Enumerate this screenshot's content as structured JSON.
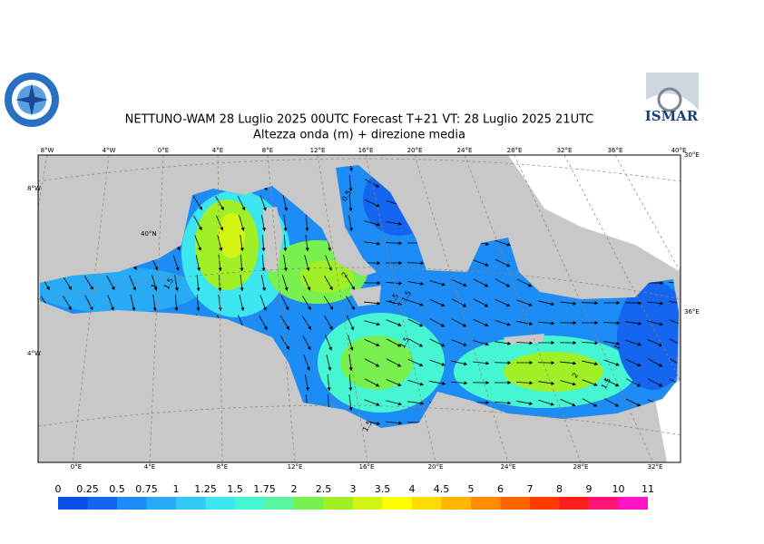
{
  "header": {
    "title": "NETTUNO-WAM  28  Luglio   2025 00UTC Forecast T+21 VT: 28  Luglio   2025 21UTC",
    "subtitle": "Altezza onda (m) + direzione media",
    "logo_right": "ISMAR"
  },
  "graticule": {
    "top": [
      "8°W",
      "4°W",
      "0°E",
      "4°E",
      "8°E",
      "12°E",
      "16°E",
      "20°E",
      "24°E",
      "28°E",
      "32°E",
      "36°E",
      "40°E"
    ],
    "bottom": [
      "0°E",
      "4°E",
      "8°E",
      "12°E",
      "16°E",
      "20°E",
      "24°E",
      "28°E",
      "32°E"
    ],
    "left": [
      "8°W",
      "40°N",
      "4°W"
    ],
    "right": [
      "30°E",
      "36°E"
    ]
  },
  "contour_labels": [
    "0.5",
    "1.5",
    "1",
    "2",
    "1.5",
    "1.5",
    "1.5",
    "1",
    "2",
    "1.5",
    "1.5"
  ],
  "colorbar": {
    "labels": [
      0,
      0.25,
      0.5,
      0.75,
      1,
      1.25,
      1.5,
      1.75,
      2,
      2.5,
      3,
      3.5,
      4,
      4.5,
      5,
      6,
      7,
      8,
      9,
      10,
      11
    ],
    "colors": [
      "#0a50e6",
      "#1466f0",
      "#1e8cf5",
      "#28aaf5",
      "#32c8f5",
      "#3ce6f0",
      "#46f5d2",
      "#5af5a0",
      "#78f050",
      "#a0f028",
      "#d2f514",
      "#ffff00",
      "#ffdc00",
      "#ffb400",
      "#ff8c00",
      "#ff6400",
      "#ff3c00",
      "#ff1e1e",
      "#ff1478",
      "#ff14c8"
    ]
  }
}
